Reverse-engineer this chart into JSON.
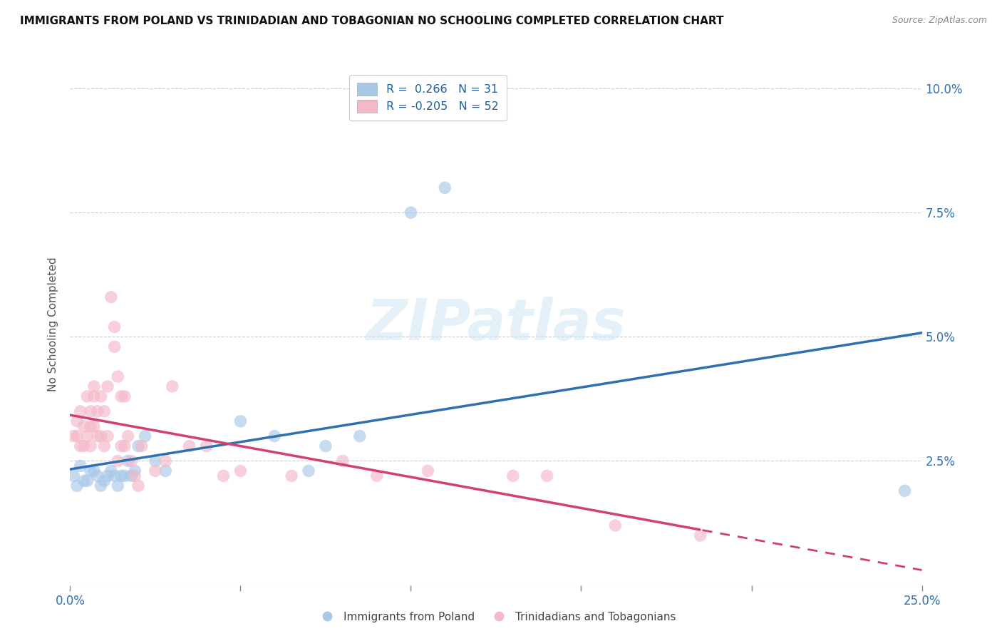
{
  "title": "IMMIGRANTS FROM POLAND VS TRINIDADIAN AND TOBAGONIAN NO SCHOOLING COMPLETED CORRELATION CHART",
  "source": "Source: ZipAtlas.com",
  "ylabel": "No Schooling Completed",
  "watermark": "ZIPatlas",
  "color_blue": "#a8c8e8",
  "color_pink": "#f4b8c8",
  "color_blue_line": "#3070b0",
  "color_pink_line": "#d04070",
  "xlim": [
    0.0,
    0.25
  ],
  "ylim": [
    0.0,
    0.105
  ],
  "legend_label1": "R =  0.266   N = 31",
  "legend_label2": "R = -0.205   N = 52",
  "poland_scatter": [
    [
      0.001,
      0.022
    ],
    [
      0.002,
      0.02
    ],
    [
      0.003,
      0.024
    ],
    [
      0.004,
      0.021
    ],
    [
      0.005,
      0.021
    ],
    [
      0.006,
      0.023
    ],
    [
      0.007,
      0.023
    ],
    [
      0.008,
      0.022
    ],
    [
      0.009,
      0.02
    ],
    [
      0.01,
      0.021
    ],
    [
      0.011,
      0.022
    ],
    [
      0.012,
      0.023
    ],
    [
      0.013,
      0.022
    ],
    [
      0.014,
      0.02
    ],
    [
      0.015,
      0.022
    ],
    [
      0.016,
      0.022
    ],
    [
      0.017,
      0.025
    ],
    [
      0.018,
      0.022
    ],
    [
      0.019,
      0.023
    ],
    [
      0.02,
      0.028
    ],
    [
      0.022,
      0.03
    ],
    [
      0.025,
      0.025
    ],
    [
      0.028,
      0.023
    ],
    [
      0.05,
      0.033
    ],
    [
      0.06,
      0.03
    ],
    [
      0.07,
      0.023
    ],
    [
      0.075,
      0.028
    ],
    [
      0.085,
      0.03
    ],
    [
      0.1,
      0.075
    ],
    [
      0.11,
      0.08
    ],
    [
      0.245,
      0.019
    ]
  ],
  "tt_scatter": [
    [
      0.001,
      0.03
    ],
    [
      0.002,
      0.033
    ],
    [
      0.002,
      0.03
    ],
    [
      0.003,
      0.035
    ],
    [
      0.003,
      0.028
    ],
    [
      0.004,
      0.032
    ],
    [
      0.004,
      0.028
    ],
    [
      0.005,
      0.038
    ],
    [
      0.005,
      0.03
    ],
    [
      0.006,
      0.035
    ],
    [
      0.006,
      0.032
    ],
    [
      0.006,
      0.028
    ],
    [
      0.007,
      0.04
    ],
    [
      0.007,
      0.038
    ],
    [
      0.007,
      0.032
    ],
    [
      0.008,
      0.035
    ],
    [
      0.008,
      0.03
    ],
    [
      0.009,
      0.038
    ],
    [
      0.009,
      0.03
    ],
    [
      0.01,
      0.035
    ],
    [
      0.01,
      0.028
    ],
    [
      0.011,
      0.04
    ],
    [
      0.011,
      0.03
    ],
    [
      0.012,
      0.058
    ],
    [
      0.013,
      0.052
    ],
    [
      0.013,
      0.048
    ],
    [
      0.014,
      0.042
    ],
    [
      0.014,
      0.025
    ],
    [
      0.015,
      0.038
    ],
    [
      0.015,
      0.028
    ],
    [
      0.016,
      0.038
    ],
    [
      0.016,
      0.028
    ],
    [
      0.017,
      0.03
    ],
    [
      0.018,
      0.025
    ],
    [
      0.019,
      0.022
    ],
    [
      0.02,
      0.02
    ],
    [
      0.021,
      0.028
    ],
    [
      0.025,
      0.023
    ],
    [
      0.028,
      0.025
    ],
    [
      0.03,
      0.04
    ],
    [
      0.035,
      0.028
    ],
    [
      0.04,
      0.028
    ],
    [
      0.045,
      0.022
    ],
    [
      0.05,
      0.023
    ],
    [
      0.065,
      0.022
    ],
    [
      0.08,
      0.025
    ],
    [
      0.09,
      0.022
    ],
    [
      0.105,
      0.023
    ],
    [
      0.13,
      0.022
    ],
    [
      0.14,
      0.022
    ],
    [
      0.16,
      0.012
    ],
    [
      0.185,
      0.01
    ]
  ]
}
